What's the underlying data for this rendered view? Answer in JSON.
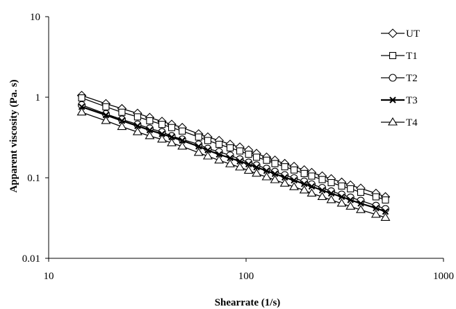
{
  "chart_data": {
    "type": "line",
    "title": "",
    "xlabel": "Shearrate (1/s)",
    "ylabel": "Apparent viscosity (Pa. s)",
    "x_scale": "log",
    "y_scale": "log",
    "xlim": [
      10,
      1000
    ],
    "ylim": [
      0.01,
      10
    ],
    "x_tick_labels": [
      "10",
      "100",
      "1000"
    ],
    "y_tick_labels": [
      "10",
      "1",
      "0.1",
      "0.01"
    ],
    "grid": false,
    "legend_position": "right",
    "x": [
      14.7,
      19.5,
      23.5,
      28.2,
      32.5,
      37.5,
      42.0,
      47.5,
      57.5,
      64.0,
      73.0,
      83.0,
      93.0,
      103.0,
      113.0,
      127.0,
      140.0,
      157.0,
      175.0,
      197.0,
      215.0,
      243.0,
      270.0,
      305.0,
      338.0,
      381.0,
      455.0,
      508.0
    ],
    "series": [
      {
        "name": "UT",
        "marker": "diamond",
        "values": [
          1.05,
          0.83,
          0.72,
          0.63,
          0.56,
          0.5,
          0.46,
          0.42,
          0.35,
          0.32,
          0.29,
          0.26,
          0.24,
          0.22,
          0.2,
          0.18,
          0.165,
          0.15,
          0.138,
          0.125,
          0.116,
          0.105,
          0.097,
          0.088,
          0.081,
          0.074,
          0.064,
          0.058
        ]
      },
      {
        "name": "T1",
        "marker": "square",
        "values": [
          0.98,
          0.76,
          0.65,
          0.57,
          0.51,
          0.46,
          0.42,
          0.38,
          0.32,
          0.29,
          0.26,
          0.235,
          0.215,
          0.196,
          0.18,
          0.165,
          0.15,
          0.137,
          0.125,
          0.113,
          0.105,
          0.095,
          0.087,
          0.079,
          0.073,
          0.066,
          0.058,
          0.053
        ]
      },
      {
        "name": "T2",
        "marker": "circle",
        "values": [
          0.8,
          0.62,
          0.53,
          0.46,
          0.41,
          0.37,
          0.33,
          0.3,
          0.26,
          0.23,
          0.21,
          0.19,
          0.17,
          0.155,
          0.143,
          0.13,
          0.119,
          0.108,
          0.099,
          0.09,
          0.083,
          0.075,
          0.068,
          0.062,
          0.057,
          0.052,
          0.045,
          0.041
        ]
      },
      {
        "name": "T3",
        "marker": "x",
        "values": [
          0.76,
          0.6,
          0.51,
          0.44,
          0.39,
          0.35,
          0.32,
          0.29,
          0.245,
          0.22,
          0.195,
          0.176,
          0.16,
          0.147,
          0.135,
          0.122,
          0.112,
          0.101,
          0.093,
          0.084,
          0.078,
          0.07,
          0.064,
          0.058,
          0.053,
          0.048,
          0.042,
          0.038
        ]
      },
      {
        "name": "T4",
        "marker": "triangle",
        "values": [
          0.65,
          0.51,
          0.43,
          0.37,
          0.33,
          0.3,
          0.27,
          0.245,
          0.205,
          0.185,
          0.165,
          0.148,
          0.135,
          0.123,
          0.113,
          0.102,
          0.094,
          0.085,
          0.077,
          0.07,
          0.064,
          0.058,
          0.053,
          0.048,
          0.044,
          0.04,
          0.035,
          0.032
        ]
      }
    ]
  }
}
